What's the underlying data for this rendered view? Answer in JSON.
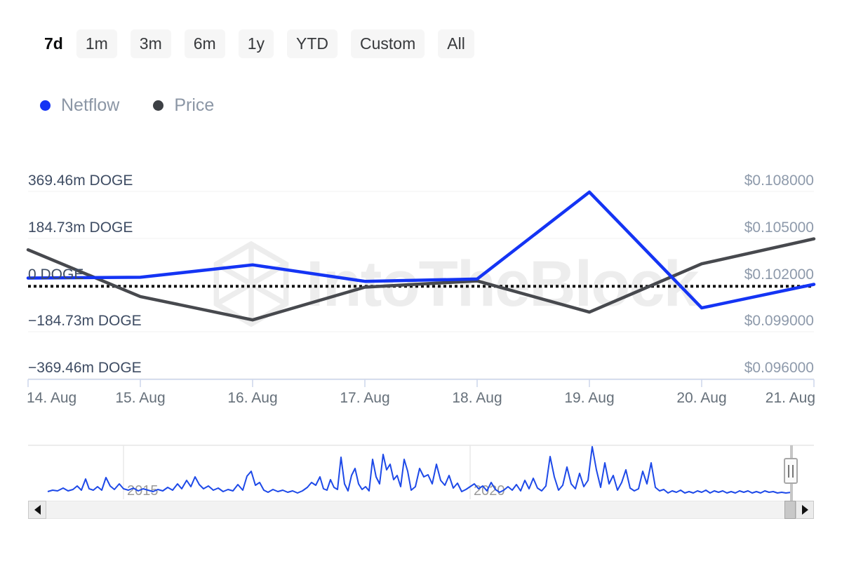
{
  "range_selector": {
    "options": [
      "7d",
      "1m",
      "3m",
      "6m",
      "1y",
      "YTD",
      "Custom",
      "All"
    ],
    "selected": "7d"
  },
  "legend": [
    {
      "label": "Netflow",
      "color": "#1434f4"
    },
    {
      "label": "Price",
      "color": "#3d4045"
    }
  ],
  "watermark": {
    "text": "IntoTheBlock"
  },
  "colors": {
    "netflow_line": "#1434f4",
    "price_line": "#47494e",
    "reference_dotted": "#111111",
    "grid_line": "#f0f0f0",
    "axis_line": "#ccd6eb",
    "left_label": "#3e4c63",
    "right_label": "#8e9aab",
    "x_label": "#66707a",
    "navigator_line": "#1d49e8"
  },
  "chart_data": {
    "type": "line",
    "title": "",
    "x": [
      "14. Aug",
      "15. Aug",
      "16. Aug",
      "17. Aug",
      "18. Aug",
      "19. Aug",
      "20. Aug",
      "21. Aug"
    ],
    "series": [
      {
        "name": "Netflow",
        "unit": "m DOGE",
        "color": "#1434f4",
        "values": [
          30,
          33,
          82,
          17,
          26,
          369.46,
          -88,
          5
        ]
      },
      {
        "name": "Price",
        "unit": "USD",
        "color": "#47494e",
        "values": [
          0.1043,
          0.1013,
          0.0998,
          0.1019,
          0.1023,
          0.1003,
          0.1034,
          0.105
        ]
      }
    ],
    "left_axis": {
      "labels": [
        "369.46m DOGE",
        "184.73m DOGE",
        "0 DOGE",
        "−184.73m DOGE",
        "−369.46m DOGE"
      ],
      "values_m_doge": [
        369.46,
        184.73,
        0,
        -184.73,
        -369.46
      ]
    },
    "right_axis": {
      "labels": [
        "$0.108000",
        "$0.105000",
        "$0.102000",
        "$0.099000",
        "$0.096000"
      ],
      "values_usd": [
        0.108,
        0.105,
        0.102,
        0.099,
        0.096
      ]
    },
    "reference_line": {
      "style": "dotted",
      "at_value": "0 DOGE"
    },
    "grid": true,
    "legend_position": "top-left"
  },
  "navigator": {
    "year_labels": [
      {
        "text": "2015",
        "x": 176
      },
      {
        "text": "2020",
        "x": 670
      }
    ],
    "sparkline_points": [
      [
        68,
        701
      ],
      [
        75,
        699
      ],
      [
        82,
        700
      ],
      [
        90,
        696
      ],
      [
        97,
        700
      ],
      [
        104,
        698
      ],
      [
        110,
        693
      ],
      [
        116,
        699
      ],
      [
        122,
        683
      ],
      [
        127,
        697
      ],
      [
        133,
        699
      ],
      [
        139,
        694
      ],
      [
        145,
        699
      ],
      [
        151,
        681
      ],
      [
        157,
        693
      ],
      [
        163,
        698
      ],
      [
        170,
        690
      ],
      [
        176,
        697
      ],
      [
        183,
        699
      ],
      [
        190,
        696
      ],
      [
        197,
        700
      ],
      [
        204,
        697
      ],
      [
        211,
        699
      ],
      [
        218,
        701
      ],
      [
        225,
        698
      ],
      [
        232,
        700
      ],
      [
        239,
        695
      ],
      [
        246,
        699
      ],
      [
        253,
        690
      ],
      [
        259,
        697
      ],
      [
        266,
        685
      ],
      [
        272,
        694
      ],
      [
        278,
        680
      ],
      [
        284,
        691
      ],
      [
        290,
        697
      ],
      [
        297,
        693
      ],
      [
        304,
        699
      ],
      [
        311,
        696
      ],
      [
        318,
        701
      ],
      [
        325,
        698
      ],
      [
        332,
        700
      ],
      [
        339,
        691
      ],
      [
        346,
        699
      ],
      [
        352,
        679
      ],
      [
        358,
        672
      ],
      [
        364,
        692
      ],
      [
        370,
        688
      ],
      [
        376,
        699
      ],
      [
        382,
        702
      ],
      [
        389,
        698
      ],
      [
        396,
        701
      ],
      [
        403,
        699
      ],
      [
        410,
        702
      ],
      [
        417,
        700
      ],
      [
        424,
        703
      ],
      [
        431,
        700
      ],
      [
        438,
        695
      ],
      [
        444,
        688
      ],
      [
        450,
        692
      ],
      [
        456,
        680
      ],
      [
        461,
        697
      ],
      [
        466,
        699
      ],
      [
        471,
        684
      ],
      [
        476,
        695
      ],
      [
        481,
        698
      ],
      [
        486,
        652
      ],
      [
        491,
        690
      ],
      [
        496,
        700
      ],
      [
        501,
        678
      ],
      [
        506,
        668
      ],
      [
        511,
        690
      ],
      [
        516,
        698
      ],
      [
        521,
        694
      ],
      [
        526,
        700
      ],
      [
        531,
        655
      ],
      [
        536,
        680
      ],
      [
        541,
        690
      ],
      [
        546,
        648
      ],
      [
        551,
        670
      ],
      [
        556,
        662
      ],
      [
        561,
        684
      ],
      [
        566,
        678
      ],
      [
        571,
        694
      ],
      [
        576,
        655
      ],
      [
        581,
        672
      ],
      [
        586,
        699
      ],
      [
        592,
        694
      ],
      [
        598,
        668
      ],
      [
        604,
        680
      ],
      [
        610,
        677
      ],
      [
        616,
        690
      ],
      [
        622,
        662
      ],
      [
        628,
        685
      ],
      [
        634,
        692
      ],
      [
        640,
        678
      ],
      [
        646,
        696
      ],
      [
        652,
        689
      ],
      [
        658,
        701
      ],
      [
        664,
        698
      ],
      [
        670,
        694
      ],
      [
        676,
        690
      ],
      [
        682,
        697
      ],
      [
        688,
        693
      ],
      [
        694,
        700
      ],
      [
        700,
        688
      ],
      [
        706,
        698
      ],
      [
        712,
        702
      ],
      [
        718,
        699
      ],
      [
        724,
        694
      ],
      [
        730,
        699
      ],
      [
        736,
        691
      ],
      [
        742,
        700
      ],
      [
        748,
        685
      ],
      [
        754,
        697
      ],
      [
        760,
        682
      ],
      [
        766,
        696
      ],
      [
        772,
        700
      ],
      [
        778,
        693
      ],
      [
        784,
        651
      ],
      [
        790,
        680
      ],
      [
        796,
        699
      ],
      [
        802,
        692
      ],
      [
        808,
        666
      ],
      [
        814,
        690
      ],
      [
        820,
        697
      ],
      [
        826,
        675
      ],
      [
        832,
        694
      ],
      [
        838,
        685
      ],
      [
        844,
        637
      ],
      [
        850,
        670
      ],
      [
        856,
        695
      ],
      [
        862,
        660
      ],
      [
        868,
        690
      ],
      [
        874,
        678
      ],
      [
        880,
        699
      ],
      [
        886,
        688
      ],
      [
        892,
        670
      ],
      [
        898,
        696
      ],
      [
        904,
        700
      ],
      [
        910,
        697
      ],
      [
        916,
        672
      ],
      [
        922,
        690
      ],
      [
        928,
        660
      ],
      [
        934,
        695
      ],
      [
        940,
        700
      ],
      [
        946,
        698
      ],
      [
        952,
        703
      ],
      [
        958,
        700
      ],
      [
        964,
        702
      ],
      [
        970,
        699
      ],
      [
        976,
        703
      ],
      [
        982,
        701
      ],
      [
        988,
        703
      ],
      [
        994,
        700
      ],
      [
        1000,
        702
      ],
      [
        1006,
        699
      ],
      [
        1012,
        703
      ],
      [
        1018,
        700
      ],
      [
        1024,
        702
      ],
      [
        1030,
        700
      ],
      [
        1036,
        703
      ],
      [
        1042,
        701
      ],
      [
        1048,
        703
      ],
      [
        1054,
        700
      ],
      [
        1060,
        702
      ],
      [
        1066,
        700
      ],
      [
        1072,
        703
      ],
      [
        1078,
        701
      ],
      [
        1084,
        703
      ],
      [
        1090,
        700
      ],
      [
        1096,
        702
      ],
      [
        1102,
        701
      ],
      [
        1108,
        703
      ],
      [
        1114,
        702
      ],
      [
        1120,
        703
      ],
      [
        1128,
        702
      ]
    ]
  }
}
